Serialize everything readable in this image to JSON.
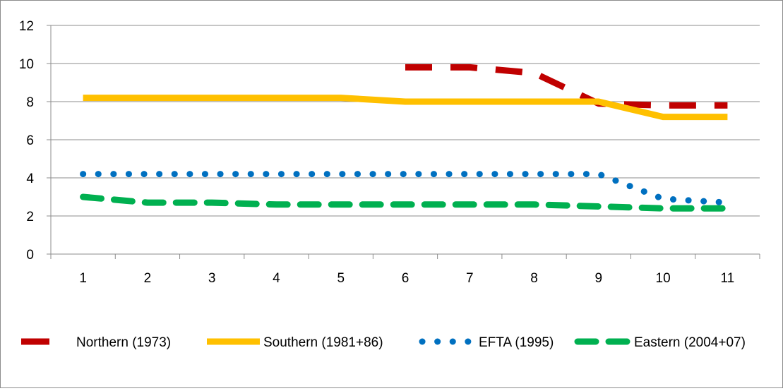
{
  "chart_data": {
    "type": "line",
    "title": "",
    "xlabel": "",
    "ylabel": "",
    "categories": [
      "1",
      "2",
      "3",
      "4",
      "5",
      "6",
      "7",
      "8",
      "9",
      "10",
      "11"
    ],
    "ylim": [
      0,
      12
    ],
    "yticks": [
      0,
      2,
      4,
      6,
      8,
      10,
      12
    ],
    "grid": "horizontal",
    "legend_position": "bottom",
    "series": [
      {
        "name": "Northern (1973)",
        "color": "#c00000",
        "style": "long-dash",
        "values": [
          null,
          null,
          null,
          null,
          null,
          9.8,
          9.8,
          9.5,
          7.9,
          7.8,
          7.8
        ]
      },
      {
        "name": "Southern (1981+86)",
        "color": "#ffc000",
        "style": "solid",
        "values": [
          8.2,
          8.2,
          8.2,
          8.2,
          8.2,
          8.0,
          8.0,
          8.0,
          8.0,
          7.2,
          7.2
        ]
      },
      {
        "name": "EFTA (1995)",
        "color": "#0070c0",
        "style": "round-dot",
        "values": [
          4.2,
          4.2,
          4.2,
          4.2,
          4.2,
          4.2,
          4.2,
          4.2,
          4.2,
          2.9,
          2.7
        ]
      },
      {
        "name": "Eastern (2004+07)",
        "color": "#00b050",
        "style": "dash",
        "values": [
          3.0,
          2.7,
          2.7,
          2.6,
          2.6,
          2.6,
          2.6,
          2.6,
          2.5,
          2.4,
          2.4
        ]
      }
    ]
  }
}
